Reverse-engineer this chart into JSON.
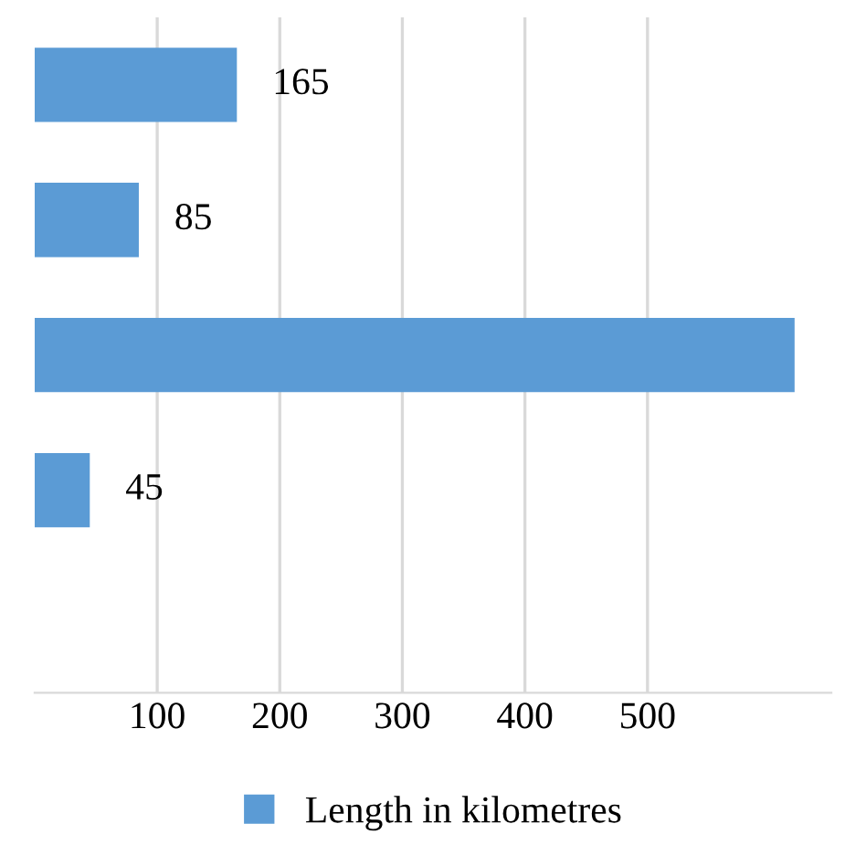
{
  "chart_data": {
    "type": "bar",
    "orientation": "horizontal",
    "categories": [
      null,
      null,
      null,
      null,
      null
    ],
    "series": [
      {
        "name": "Length in kilometres",
        "color": "#5b9bd5",
        "values": [
          165,
          85,
          620,
          45,
          null
        ],
        "value_labels": [
          "165",
          "85",
          null,
          "45",
          null
        ]
      }
    ],
    "xlim": [
      0,
      650
    ],
    "xticks": [
      100,
      200,
      300,
      400,
      500
    ],
    "grid": "x",
    "legend": "bottom"
  }
}
